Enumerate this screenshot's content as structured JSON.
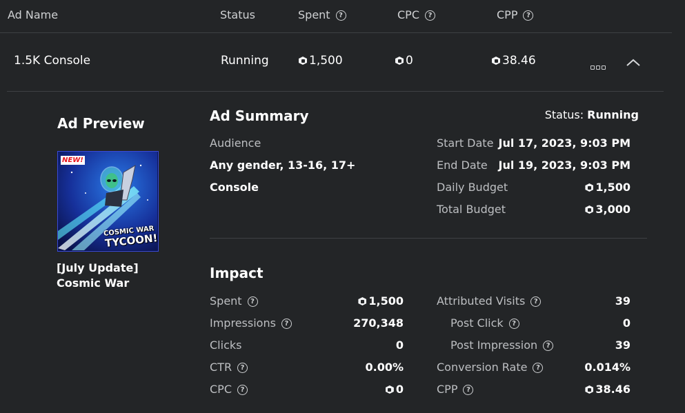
{
  "columns": {
    "ad_name": "Ad Name",
    "status": "Status",
    "spent": "Spent",
    "cpc": "CPC",
    "cpp": "CPP"
  },
  "row": {
    "name": "1.5K Console",
    "status": "Running",
    "spent": "1,500",
    "cpc": "0",
    "cpp": "38.46"
  },
  "preview": {
    "title": "Ad Preview",
    "badge": "NEW!",
    "art_title_line1": "COSMIC WAR",
    "art_title_line2": "TYCOON!",
    "caption_line1": "[July Update]",
    "caption_line2": "Cosmic War"
  },
  "summary": {
    "title": "Ad Summary",
    "status_label": "Status:",
    "status_value": "Running",
    "audience_label": "Audience",
    "audience_value": "Any gender, 13-16, 17+",
    "device": "Console",
    "start_label": "Start Date",
    "start_value": "Jul 17, 2023, 9:03 PM",
    "end_label": "End Date",
    "end_value": "Jul 19, 2023, 9:03 PM",
    "daily_label": "Daily Budget",
    "daily_value": "1,500",
    "total_label": "Total Budget",
    "total_value": "3,000"
  },
  "impact": {
    "title": "Impact",
    "spent_label": "Spent",
    "spent_value": "1,500",
    "impressions_label": "Impressions",
    "impressions_value": "270,348",
    "clicks_label": "Clicks",
    "clicks_value": "0",
    "ctr_label": "CTR",
    "ctr_value": "0.00%",
    "cpc_label": "CPC",
    "cpc_value": "0",
    "visits_label": "Attributed Visits",
    "visits_value": "39",
    "post_click_label": "Post Click",
    "post_click_value": "0",
    "post_impression_label": "Post Impression",
    "post_impression_value": "39",
    "conversion_label": "Conversion Rate",
    "conversion_value": "0.014%",
    "cpp_label": "CPP",
    "cpp_value": "38.46"
  },
  "icons": {
    "help": "help-circle-icon",
    "currency": "robux-icon",
    "more": "more-options-icon",
    "collapse": "chevron-up-icon"
  },
  "colors": {
    "background": "#232527",
    "text": "#ffffff",
    "muted": "#bdbfc2",
    "divider": "#3e4144"
  }
}
